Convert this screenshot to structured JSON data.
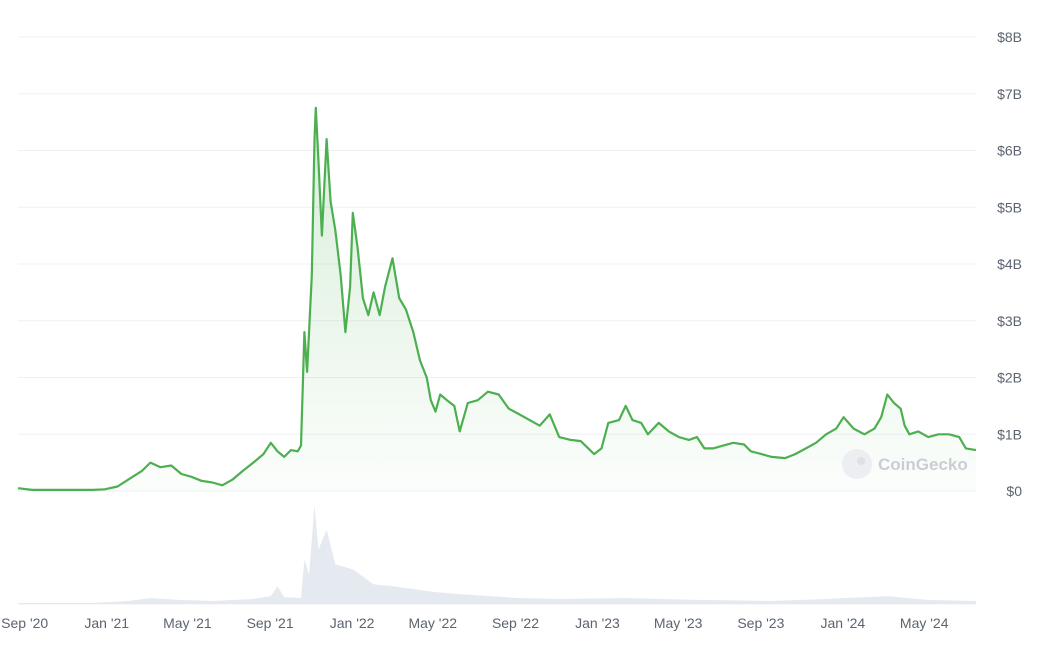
{
  "chart_data": {
    "type": "area",
    "title": "",
    "xlabel": "",
    "ylabel": "",
    "ylim": [
      0,
      8
    ],
    "y_unit": "billion USD",
    "y_ticks": [
      0,
      1,
      2,
      3,
      4,
      5,
      6,
      7,
      8
    ],
    "y_tick_labels": [
      "$0",
      "$1B",
      "$2B",
      "$3B",
      "$4B",
      "$5B",
      "$6B",
      "$7B",
      "$8B"
    ],
    "x_range": [
      "2020-08-25",
      "2024-07-20"
    ],
    "x_ticks": [
      "2020-09-01",
      "2021-01-01",
      "2021-05-01",
      "2021-09-01",
      "2022-01-01",
      "2022-05-01",
      "2022-09-01",
      "2023-01-01",
      "2023-05-01",
      "2023-09-01",
      "2024-01-01",
      "2024-05-01"
    ],
    "x_tick_labels": [
      "Sep '20",
      "Jan '21",
      "May '21",
      "Sep '21",
      "Jan '22",
      "May '22",
      "Sep '22",
      "Jan '23",
      "May '23",
      "Sep '23",
      "Jan '24",
      "May '24"
    ],
    "grid": true,
    "colors": {
      "line": "#4caf50",
      "area": "#4caf50",
      "volume": "#dfe3ec",
      "grid": "#eef0f3"
    },
    "watermark": "CoinGecko",
    "series": [
      {
        "values": [
          [
            "2020-08-25",
            0.05
          ],
          [
            "2020-09-15",
            0.02
          ],
          [
            "2020-10-15",
            0.02
          ],
          [
            "2020-11-15",
            0.02
          ],
          [
            "2020-12-15",
            0.02
          ],
          [
            "2021-01-01",
            0.03
          ],
          [
            "2021-01-20",
            0.08
          ],
          [
            "2021-02-05",
            0.2
          ],
          [
            "2021-02-25",
            0.35
          ],
          [
            "2021-03-10",
            0.5
          ],
          [
            "2021-03-25",
            0.42
          ],
          [
            "2021-04-10",
            0.45
          ],
          [
            "2021-04-25",
            0.3
          ],
          [
            "2021-05-10",
            0.25
          ],
          [
            "2021-05-25",
            0.18
          ],
          [
            "2021-06-10",
            0.15
          ],
          [
            "2021-06-25",
            0.1
          ],
          [
            "2021-07-10",
            0.2
          ],
          [
            "2021-07-25",
            0.35
          ],
          [
            "2021-08-10",
            0.5
          ],
          [
            "2021-08-25",
            0.65
          ],
          [
            "2021-09-05",
            0.85
          ],
          [
            "2021-09-15",
            0.7
          ],
          [
            "2021-09-25",
            0.6
          ],
          [
            "2021-10-05",
            0.72
          ],
          [
            "2021-10-15",
            0.7
          ],
          [
            "2021-10-20",
            0.8
          ],
          [
            "2021-10-25",
            2.8
          ],
          [
            "2021-10-29",
            2.1
          ],
          [
            "2021-11-05",
            3.8
          ],
          [
            "2021-11-09",
            6.2
          ],
          [
            "2021-11-11",
            6.75
          ],
          [
            "2021-11-15",
            5.8
          ],
          [
            "2021-11-20",
            4.5
          ],
          [
            "2021-11-27",
            6.2
          ],
          [
            "2021-12-03",
            5.1
          ],
          [
            "2021-12-10",
            4.6
          ],
          [
            "2021-12-18",
            3.8
          ],
          [
            "2021-12-25",
            2.8
          ],
          [
            "2022-01-01",
            3.6
          ],
          [
            "2022-01-05",
            4.9
          ],
          [
            "2022-01-12",
            4.3
          ],
          [
            "2022-01-20",
            3.4
          ],
          [
            "2022-01-28",
            3.1
          ],
          [
            "2022-02-05",
            3.5
          ],
          [
            "2022-02-14",
            3.1
          ],
          [
            "2022-02-22",
            3.6
          ],
          [
            "2022-03-05",
            4.1
          ],
          [
            "2022-03-15",
            3.4
          ],
          [
            "2022-03-25",
            3.2
          ],
          [
            "2022-04-05",
            2.8
          ],
          [
            "2022-04-15",
            2.3
          ],
          [
            "2022-04-25",
            2.0
          ],
          [
            "2022-05-01",
            1.6
          ],
          [
            "2022-05-08",
            1.4
          ],
          [
            "2022-05-15",
            1.7
          ],
          [
            "2022-05-25",
            1.6
          ],
          [
            "2022-06-05",
            1.5
          ],
          [
            "2022-06-13",
            1.05
          ],
          [
            "2022-06-25",
            1.55
          ],
          [
            "2022-07-10",
            1.6
          ],
          [
            "2022-07-25",
            1.75
          ],
          [
            "2022-08-10",
            1.7
          ],
          [
            "2022-08-25",
            1.45
          ],
          [
            "2022-09-10",
            1.35
          ],
          [
            "2022-09-25",
            1.25
          ],
          [
            "2022-10-10",
            1.15
          ],
          [
            "2022-10-25",
            1.35
          ],
          [
            "2022-11-08",
            0.95
          ],
          [
            "2022-11-25",
            0.9
          ],
          [
            "2022-12-10",
            0.88
          ],
          [
            "2022-12-30",
            0.65
          ],
          [
            "2023-01-10",
            0.75
          ],
          [
            "2023-01-20",
            1.2
          ],
          [
            "2023-02-05",
            1.25
          ],
          [
            "2023-02-15",
            1.5
          ],
          [
            "2023-02-25",
            1.25
          ],
          [
            "2023-03-10",
            1.2
          ],
          [
            "2023-03-20",
            1.0
          ],
          [
            "2023-04-05",
            1.2
          ],
          [
            "2023-04-20",
            1.05
          ],
          [
            "2023-05-05",
            0.95
          ],
          [
            "2023-05-20",
            0.9
          ],
          [
            "2023-06-01",
            0.95
          ],
          [
            "2023-06-12",
            0.75
          ],
          [
            "2023-06-25",
            0.75
          ],
          [
            "2023-07-10",
            0.8
          ],
          [
            "2023-07-25",
            0.85
          ],
          [
            "2023-08-10",
            0.82
          ],
          [
            "2023-08-20",
            0.7
          ],
          [
            "2023-09-05",
            0.65
          ],
          [
            "2023-09-20",
            0.6
          ],
          [
            "2023-10-10",
            0.58
          ],
          [
            "2023-10-25",
            0.65
          ],
          [
            "2023-11-10",
            0.75
          ],
          [
            "2023-11-25",
            0.85
          ],
          [
            "2023-12-10",
            1.0
          ],
          [
            "2023-12-25",
            1.1
          ],
          [
            "2024-01-05",
            1.3
          ],
          [
            "2024-01-20",
            1.1
          ],
          [
            "2024-02-05",
            1.0
          ],
          [
            "2024-02-20",
            1.1
          ],
          [
            "2024-03-01",
            1.3
          ],
          [
            "2024-03-10",
            1.7
          ],
          [
            "2024-03-20",
            1.55
          ],
          [
            "2024-03-30",
            1.45
          ],
          [
            "2024-04-05",
            1.15
          ],
          [
            "2024-04-12",
            1.0
          ],
          [
            "2024-04-25",
            1.05
          ],
          [
            "2024-05-10",
            0.95
          ],
          [
            "2024-05-25",
            1.0
          ],
          [
            "2024-06-10",
            1.0
          ],
          [
            "2024-06-25",
            0.95
          ],
          [
            "2024-07-05",
            0.75
          ],
          [
            "2024-07-20",
            0.72
          ]
        ]
      }
    ],
    "volume_series": {
      "values": [
        [
          "2020-08-25",
          0.01
        ],
        [
          "2020-12-15",
          0.01
        ],
        [
          "2021-02-05",
          0.03
        ],
        [
          "2021-03-10",
          0.06
        ],
        [
          "2021-04-25",
          0.04
        ],
        [
          "2021-06-10",
          0.03
        ],
        [
          "2021-08-10",
          0.05
        ],
        [
          "2021-09-05",
          0.08
        ],
        [
          "2021-09-15",
          0.18
        ],
        [
          "2021-09-25",
          0.07
        ],
        [
          "2021-10-20",
          0.06
        ],
        [
          "2021-10-25",
          0.45
        ],
        [
          "2021-11-01",
          0.3
        ],
        [
          "2021-11-09",
          1.0
        ],
        [
          "2021-11-15",
          0.55
        ],
        [
          "2021-11-27",
          0.75
        ],
        [
          "2021-12-10",
          0.4
        ],
        [
          "2022-01-05",
          0.35
        ],
        [
          "2022-02-05",
          0.2
        ],
        [
          "2022-03-05",
          0.18
        ],
        [
          "2022-05-08",
          0.12
        ],
        [
          "2022-06-13",
          0.1
        ],
        [
          "2022-09-10",
          0.06
        ],
        [
          "2022-11-08",
          0.05
        ],
        [
          "2023-02-15",
          0.06
        ],
        [
          "2023-06-12",
          0.04
        ],
        [
          "2023-09-20",
          0.03
        ],
        [
          "2023-12-10",
          0.05
        ],
        [
          "2024-03-10",
          0.08
        ],
        [
          "2024-05-10",
          0.04
        ],
        [
          "2024-07-20",
          0.03
        ]
      ]
    }
  }
}
